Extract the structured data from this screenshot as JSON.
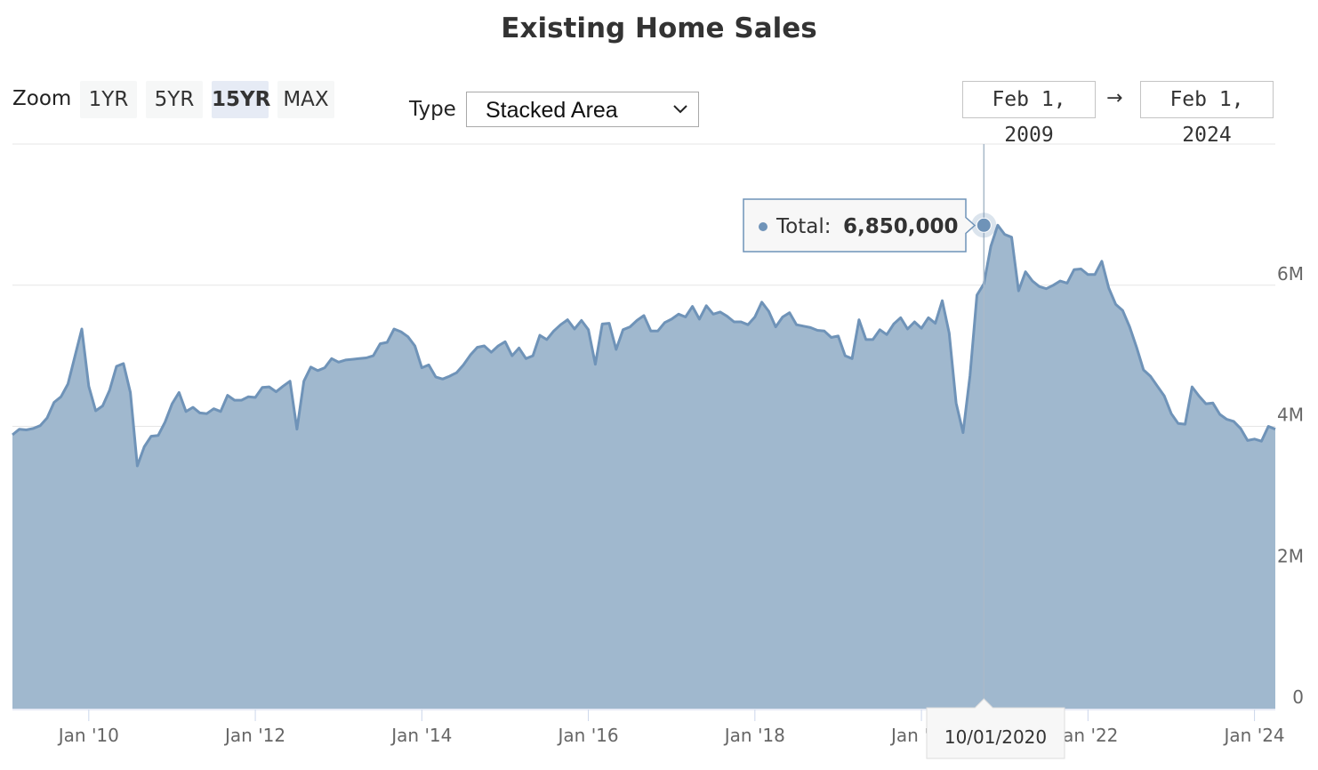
{
  "title": "Existing Home Sales",
  "zoom": {
    "label": "Zoom",
    "options": [
      "1YR",
      "5YR",
      "15YR",
      "MAX"
    ],
    "selected": "15YR"
  },
  "type_control": {
    "label": "Type",
    "selected": "Stacked Area"
  },
  "date_range": {
    "start": "Feb 1, 2009",
    "arrow": "→",
    "end": "Feb 1, 2024"
  },
  "tooltip": {
    "series_label": "Total:",
    "value": "6,850,000",
    "date": "10/01/2020"
  },
  "colors": {
    "area_fill": "#a0b8ce",
    "area_line": "#6f93b8",
    "grid": "#e6e6e6",
    "crosshair": "#a9b9c9"
  },
  "chart_data": {
    "type": "area",
    "title": "Existing Home Sales",
    "x_start": "2009-02",
    "frequency": "monthly",
    "x_ticks": [
      "Jan '10",
      "Jan '12",
      "Jan '14",
      "Jan '16",
      "Jan '18",
      "Jan '20",
      "Jan '22",
      "Jan '24"
    ],
    "y_ticks": [
      "0",
      "2M",
      "4M",
      "6M"
    ],
    "ylim": [
      0,
      8000000
    ],
    "grid": true,
    "y_axis_side": "right",
    "highlight": {
      "x": "2020-10",
      "y": 6850000
    },
    "series": [
      {
        "name": "Total",
        "values": [
          3880000,
          3960000,
          3950000,
          3970000,
          4010000,
          4120000,
          4340000,
          4420000,
          4600000,
          4990000,
          5380000,
          4570000,
          4220000,
          4290000,
          4510000,
          4850000,
          4890000,
          4480000,
          3440000,
          3710000,
          3860000,
          3870000,
          4060000,
          4320000,
          4480000,
          4210000,
          4270000,
          4190000,
          4180000,
          4250000,
          4210000,
          4440000,
          4370000,
          4370000,
          4420000,
          4410000,
          4550000,
          4560000,
          4490000,
          4570000,
          4640000,
          3960000,
          4640000,
          4840000,
          4790000,
          4830000,
          4960000,
          4910000,
          4940000,
          4950000,
          4960000,
          4970000,
          5000000,
          5170000,
          5190000,
          5380000,
          5340000,
          5270000,
          5140000,
          4830000,
          4870000,
          4700000,
          4670000,
          4710000,
          4760000,
          4870000,
          5010000,
          5120000,
          5140000,
          5050000,
          5140000,
          5200000,
          5000000,
          5110000,
          4960000,
          5000000,
          5290000,
          5230000,
          5350000,
          5440000,
          5510000,
          5380000,
          5500000,
          5370000,
          4880000,
          5450000,
          5460000,
          5090000,
          5370000,
          5410000,
          5500000,
          5570000,
          5350000,
          5350000,
          5470000,
          5520000,
          5590000,
          5550000,
          5700000,
          5520000,
          5710000,
          5590000,
          5620000,
          5560000,
          5480000,
          5480000,
          5440000,
          5550000,
          5760000,
          5630000,
          5410000,
          5550000,
          5610000,
          5440000,
          5420000,
          5400000,
          5360000,
          5350000,
          5260000,
          5280000,
          5000000,
          4960000,
          5510000,
          5230000,
          5230000,
          5370000,
          5300000,
          5450000,
          5540000,
          5380000,
          5480000,
          5390000,
          5540000,
          5460000,
          5780000,
          5320000,
          4330000,
          3910000,
          4720000,
          5860000,
          6020000,
          6550000,
          6850000,
          6720000,
          6680000,
          5920000,
          6190000,
          6060000,
          5980000,
          5950000,
          6000000,
          6060000,
          6030000,
          6220000,
          6230000,
          6150000,
          6150000,
          6340000,
          5960000,
          5730000,
          5640000,
          5410000,
          5120000,
          4800000,
          4710000,
          4570000,
          4430000,
          4180000,
          4040000,
          4030000,
          4560000,
          4430000,
          4320000,
          4330000,
          4170000,
          4100000,
          4070000,
          3970000,
          3800000,
          3820000,
          3790000,
          4000000,
          3960000
        ]
      }
    ]
  }
}
